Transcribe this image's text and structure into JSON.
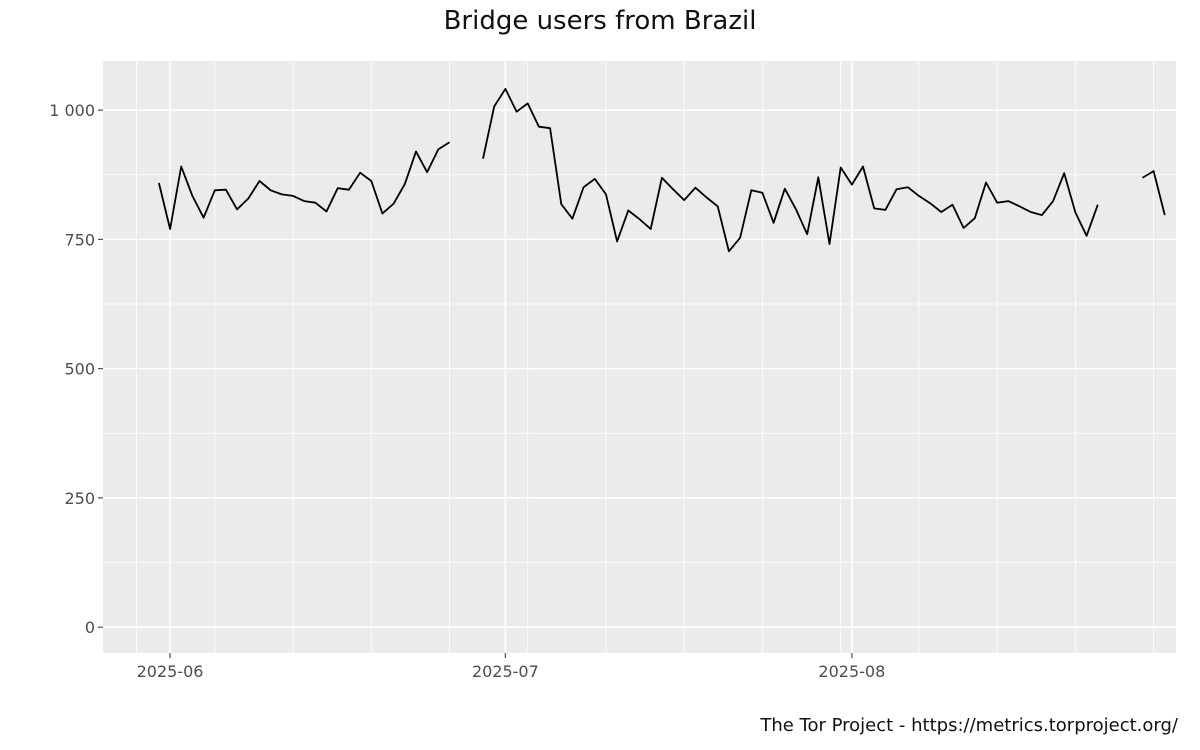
{
  "chart_data": {
    "type": "line",
    "title": "Bridge users from Brazil",
    "xlabel": "",
    "ylabel": "",
    "x_ticks": [
      "2025-06",
      "2025-07",
      "2025-08"
    ],
    "y_ticks": [
      "0",
      "250",
      "500",
      "750",
      "1 000"
    ],
    "ylim": [
      -50,
      1095
    ],
    "xlim": [
      "2025-05-26",
      "2025-08-30"
    ],
    "grid": true,
    "legend": "none",
    "series": [
      {
        "x": [
          "2025-05-31",
          "2025-06-01",
          "2025-06-02",
          "2025-06-03",
          "2025-06-04",
          "2025-06-05",
          "2025-06-06",
          "2025-06-07",
          "2025-06-08",
          "2025-06-09",
          "2025-06-10",
          "2025-06-11",
          "2025-06-12",
          "2025-06-13",
          "2025-06-14",
          "2025-06-15",
          "2025-06-16",
          "2025-06-17",
          "2025-06-18",
          "2025-06-19",
          "2025-06-20",
          "2025-06-21",
          "2025-06-22",
          "2025-06-23",
          "2025-06-24",
          "2025-06-25",
          "2025-06-26",
          "2025-06-27",
          "2025-06-28",
          "2025-06-29",
          "2025-06-30",
          "2025-07-01",
          "2025-07-02",
          "2025-07-03",
          "2025-07-04",
          "2025-07-05",
          "2025-07-06",
          "2025-07-07",
          "2025-07-08",
          "2025-07-09",
          "2025-07-10",
          "2025-07-11",
          "2025-07-12",
          "2025-07-13",
          "2025-07-14",
          "2025-07-15",
          "2025-07-16",
          "2025-07-17",
          "2025-07-18",
          "2025-07-19",
          "2025-07-20",
          "2025-07-21",
          "2025-07-22",
          "2025-07-23",
          "2025-07-24",
          "2025-07-25",
          "2025-07-26",
          "2025-07-27",
          "2025-07-28",
          "2025-07-29",
          "2025-07-30",
          "2025-07-31",
          "2025-08-01",
          "2025-08-02",
          "2025-08-03",
          "2025-08-04",
          "2025-08-05",
          "2025-08-06",
          "2025-08-07",
          "2025-08-08",
          "2025-08-09",
          "2025-08-10",
          "2025-08-11",
          "2025-08-12",
          "2025-08-13",
          "2025-08-14",
          "2025-08-15",
          "2025-08-16",
          "2025-08-17",
          "2025-08-18",
          "2025-08-19",
          "2025-08-20",
          "2025-08-21",
          "2025-08-22",
          "2025-08-23",
          "2025-08-24",
          "2025-08-25",
          "2025-08-26"
        ],
        "values": [
          859,
          770,
          891,
          834,
          792,
          845,
          846,
          808,
          829,
          863,
          845,
          837,
          834,
          824,
          821,
          804,
          849,
          846,
          879,
          863,
          800,
          819,
          857,
          920,
          880,
          924,
          938,
          null,
          null,
          906,
          1007,
          1041,
          997,
          1013,
          968,
          965,
          818,
          790,
          851,
          867,
          837,
          746,
          806,
          789,
          770,
          869,
          847,
          826,
          850,
          831,
          814,
          727,
          753,
          845,
          840,
          782,
          848,
          808,
          760,
          870,
          741,
          889,
          856,
          891,
          810,
          807,
          847,
          851,
          834,
          820,
          803,
          817,
          772,
          791,
          860,
          821,
          824,
          814,
          803,
          797,
          824,
          878,
          802,
          757,
          817,
          null,
          null,
          null
        ]
      },
      {
        "x": [
          "2025-08-27",
          "2025-08-28",
          "2025-08-29"
        ],
        "values": [
          869,
          882,
          797
        ]
      }
    ]
  },
  "credit": "The Tor Project - https://metrics.torproject.org/"
}
